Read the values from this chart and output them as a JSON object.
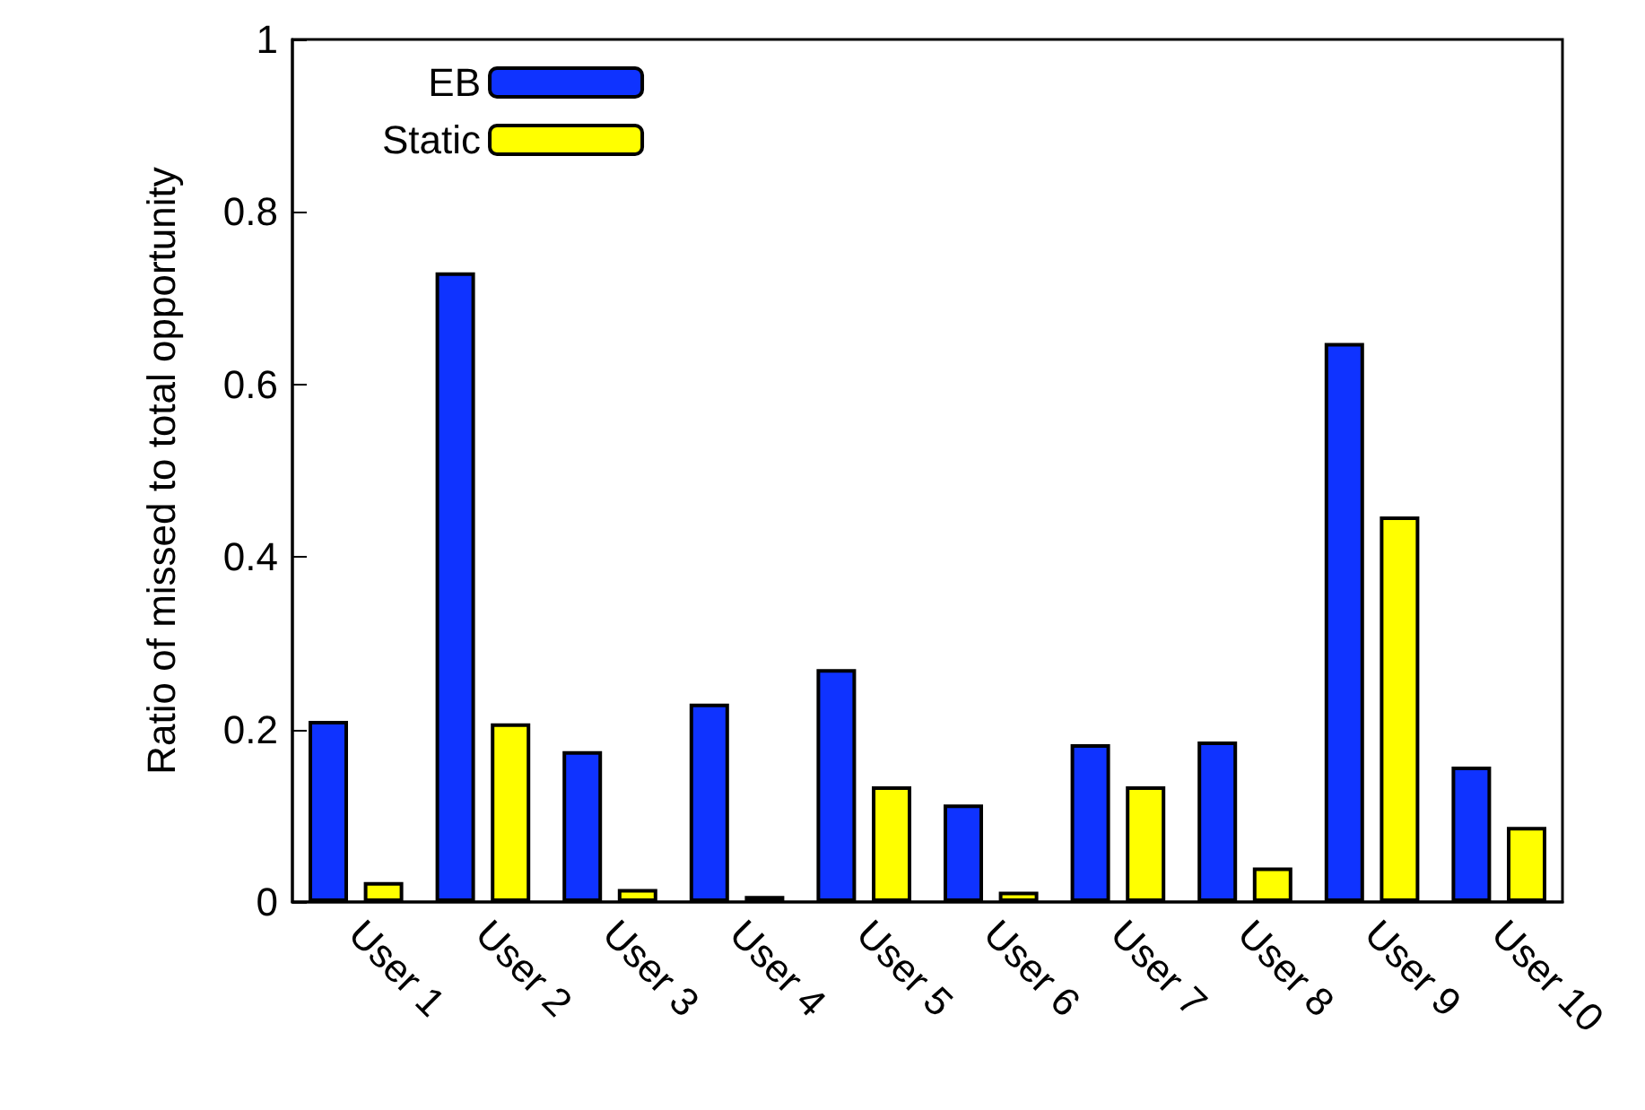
{
  "chart_data": {
    "type": "bar",
    "ylabel": "Ratio of missed to total opportunity",
    "categories": [
      "User 1",
      "User 2",
      "User 3",
      "User 4",
      "User 5",
      "User 6",
      "User 7",
      "User 8",
      "User 9",
      "User 10"
    ],
    "series": [
      {
        "name": "EB",
        "color": "#0f33ff",
        "values": [
          0.21,
          0.73,
          0.175,
          0.23,
          0.27,
          0.113,
          0.183,
          0.186,
          0.648,
          0.157
        ]
      },
      {
        "name": "Static",
        "color": "#ffff00",
        "values": [
          0.023,
          0.207,
          0.015,
          0.007,
          0.134,
          0.012,
          0.134,
          0.04,
          0.447,
          0.087
        ]
      }
    ],
    "ylim": [
      0,
      1
    ],
    "yticks": [
      0,
      0.2,
      0.4,
      0.6,
      0.8,
      1
    ],
    "grid": false,
    "legend": "top left"
  }
}
